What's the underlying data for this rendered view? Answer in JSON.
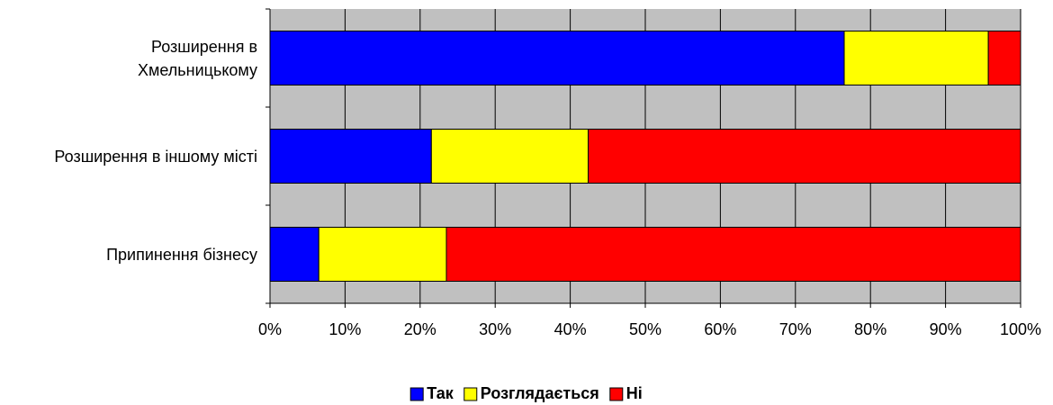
{
  "chart_data": {
    "type": "stacked_barh",
    "categories": [
      "Розширення в\nХмельницькому",
      "Розширення в іншому місті",
      "Припинення бізнесу"
    ],
    "series": [
      {
        "name": "Так",
        "color": "#0000ff",
        "values": [
          76.5,
          21.5,
          6.5
        ]
      },
      {
        "name": "Розглядається",
        "color": "#ffff00",
        "values": [
          19.2,
          20.9,
          17.0
        ]
      },
      {
        "name": "Ні",
        "color": "#ff0000",
        "values": [
          4.3,
          57.6,
          76.5
        ]
      }
    ],
    "xlim": [
      0,
      100
    ],
    "xticks": [
      {
        "value": 0,
        "label": "0%"
      },
      {
        "value": 10,
        "label": "10%"
      },
      {
        "value": 20,
        "label": "20%"
      },
      {
        "value": 30,
        "label": "30%"
      },
      {
        "value": 40,
        "label": "40%"
      },
      {
        "value": 50,
        "label": "50%"
      },
      {
        "value": 60,
        "label": "60%"
      },
      {
        "value": 70,
        "label": "70%"
      },
      {
        "value": 80,
        "label": "80%"
      },
      {
        "value": 90,
        "label": "90%"
      },
      {
        "value": 100,
        "label": "100%"
      }
    ],
    "grid": true,
    "legend": "bottom"
  }
}
